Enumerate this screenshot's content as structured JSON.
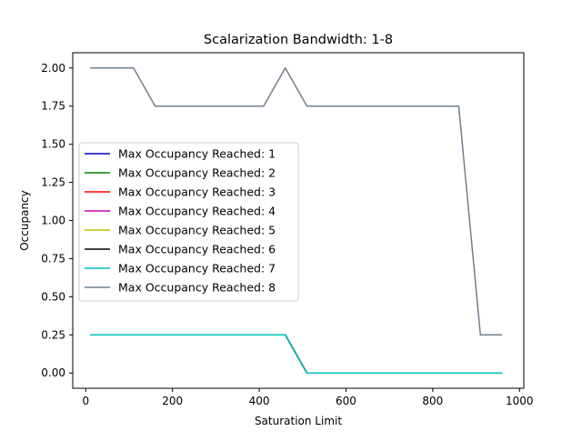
{
  "chart_data": {
    "type": "line",
    "title": "Scalarization Bandwidth: 1-8",
    "xlabel": "Saturation Limit",
    "ylabel": "Occupancy",
    "xlim": [
      -30,
      1010
    ],
    "ylim": [
      -0.1,
      2.1
    ],
    "xticks": [
      0,
      200,
      400,
      600,
      800,
      1000
    ],
    "yticks": [
      0.0,
      0.25,
      0.5,
      0.75,
      1.0,
      1.25,
      1.5,
      1.75,
      2.0
    ],
    "xtick_labels": [
      "0",
      "200",
      "400",
      "600",
      "800",
      "1000"
    ],
    "ytick_labels": [
      "0.00",
      "0.25",
      "0.50",
      "0.75",
      "1.00",
      "1.25",
      "1.50",
      "1.75",
      "2.00"
    ],
    "legend_position": "center-left",
    "grid": false,
    "series": [
      {
        "name": "Max Occupancy Reached: 1",
        "color": "#0000bf",
        "x": [
          10,
          460,
          510,
          960
        ],
        "y": [
          0.25,
          0.25,
          0.0,
          0.0
        ]
      },
      {
        "name": "Max Occupancy Reached: 2",
        "color": "#008000",
        "x": [
          10,
          460,
          510,
          960
        ],
        "y": [
          0.25,
          0.25,
          0.0,
          0.0
        ]
      },
      {
        "name": "Max Occupancy Reached: 3",
        "color": "#ff0000",
        "x": [
          10,
          460,
          510,
          960
        ],
        "y": [
          0.25,
          0.25,
          0.0,
          0.0
        ]
      },
      {
        "name": "Max Occupancy Reached: 4",
        "color": "#bf00bf",
        "x": [
          10,
          460,
          510,
          960
        ],
        "y": [
          0.25,
          0.25,
          0.0,
          0.0
        ]
      },
      {
        "name": "Max Occupancy Reached: 5",
        "color": "#bfbf00",
        "x": [
          10,
          460,
          510,
          960
        ],
        "y": [
          0.25,
          0.25,
          0.0,
          0.0
        ]
      },
      {
        "name": "Max Occupancy Reached: 6",
        "color": "#000000",
        "x": [
          10,
          460,
          510,
          960
        ],
        "y": [
          0.25,
          0.25,
          0.0,
          0.0
        ]
      },
      {
        "name": "Max Occupancy Reached: 7",
        "color": "#00bfbf",
        "x": [
          10,
          460,
          510,
          960
        ],
        "y": [
          0.25,
          0.25,
          0.0,
          0.0
        ]
      },
      {
        "name": "Max Occupancy Reached: 8",
        "color": "#708090",
        "x": [
          10,
          110,
          160,
          410,
          460,
          510,
          860,
          910,
          960
        ],
        "y": [
          2.0,
          2.0,
          1.75,
          1.75,
          2.0,
          1.75,
          1.75,
          0.25,
          0.25
        ]
      }
    ]
  }
}
